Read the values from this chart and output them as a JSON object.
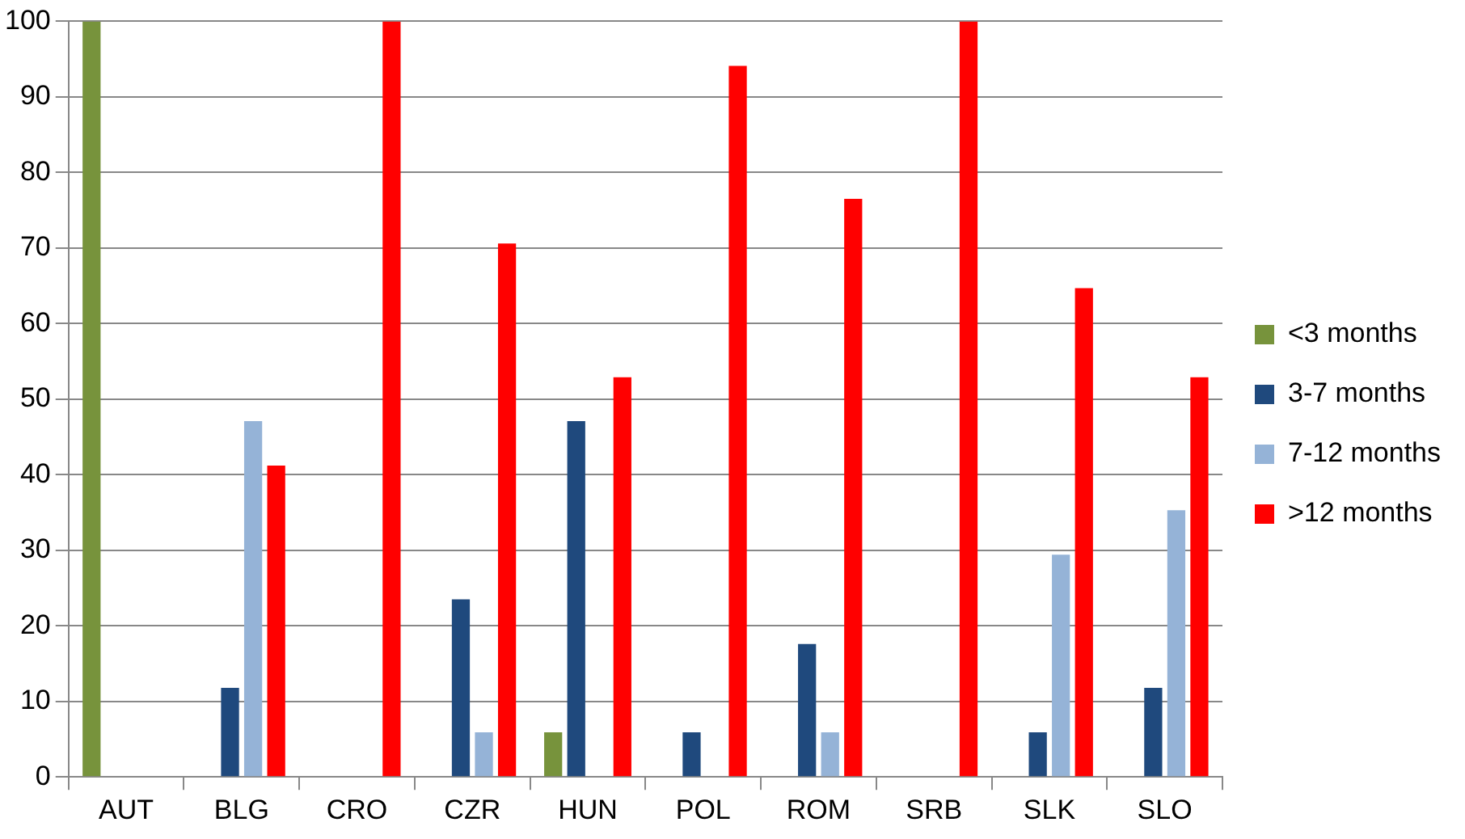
{
  "chart_data": {
    "type": "bar",
    "categories": [
      "AUT",
      "BLG",
      "CRO",
      "CZR",
      "HUN",
      "POL",
      "ROM",
      "SRB",
      "SLK",
      "SLO"
    ],
    "series": [
      {
        "name": "<3 months",
        "color": "#77933c",
        "values": [
          100,
          0,
          0,
          0,
          5.9,
          0,
          0,
          0,
          0,
          0
        ]
      },
      {
        "name": "3-7 months",
        "color": "#1f497d",
        "values": [
          0,
          11.8,
          0,
          23.5,
          47.1,
          5.9,
          17.6,
          0,
          5.9,
          11.8
        ]
      },
      {
        "name": "7-12 months",
        "color": "#95b3d7",
        "values": [
          0,
          47.1,
          0,
          5.9,
          0,
          0,
          5.9,
          0,
          29.4,
          35.3
        ]
      },
      {
        "name": ">12 months",
        "color": "#ff0000",
        "values": [
          0,
          41.2,
          100,
          70.6,
          52.9,
          94.1,
          76.5,
          100,
          64.7,
          52.9
        ]
      }
    ],
    "ylim": [
      0,
      100
    ],
    "yticks": [
      0,
      10,
      20,
      30,
      40,
      50,
      60,
      70,
      80,
      90,
      100
    ],
    "grid": "y",
    "legend": "right"
  }
}
